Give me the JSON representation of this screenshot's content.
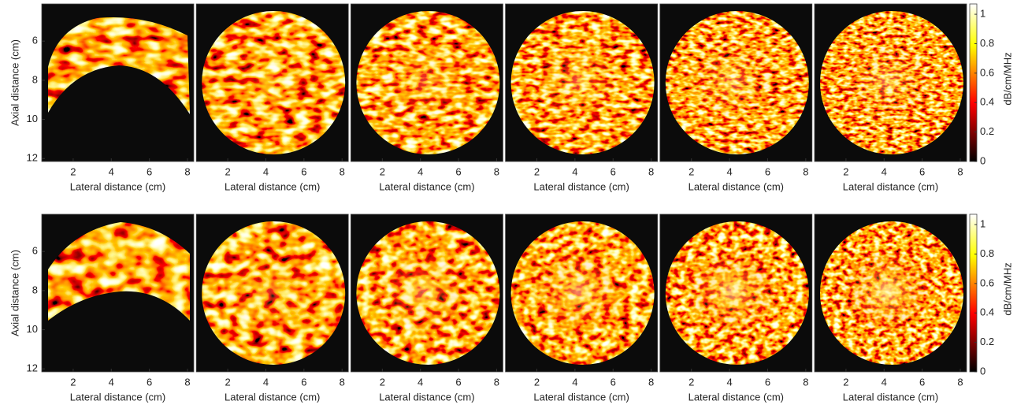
{
  "chart_data": [
    {
      "type": "heatmap",
      "xlabel": "Lateral distance (cm)",
      "xlim": [
        0.35,
        8.33
      ],
      "xticks": [
        2,
        4,
        6,
        8
      ],
      "ylabel": "Axial distance (cm)",
      "ylim": [
        4.1,
        12.15
      ],
      "yreverse": true,
      "yticks": [
        6,
        8,
        10,
        12
      ]
    },
    {
      "type": "heatmap",
      "xlabel": "Lateral distance (cm)",
      "xlim": [
        0.35,
        8.33
      ],
      "xticks": [
        2,
        4,
        6,
        8
      ]
    },
    {
      "type": "heatmap",
      "xlabel": "Lateral distance (cm)",
      "xlim": [
        0.35,
        8.33
      ],
      "xticks": [
        2,
        4,
        6,
        8
      ]
    },
    {
      "type": "heatmap",
      "xlabel": "Lateral distance (cm)",
      "xlim": [
        0.35,
        8.33
      ],
      "xticks": [
        2,
        4,
        6,
        8
      ]
    },
    {
      "type": "heatmap",
      "xlabel": "Lateral distance (cm)",
      "xlim": [
        0.35,
        8.33
      ],
      "xticks": [
        2,
        4,
        6,
        8
      ]
    },
    {
      "type": "heatmap",
      "xlabel": "Lateral distance (cm)",
      "xlim": [
        0.35,
        8.33
      ],
      "xticks": [
        2,
        4,
        6,
        8
      ],
      "colorbar": {
        "label": "dB/cm/MHz",
        "lim": [
          0,
          1.07
        ],
        "ticks": [
          0,
          0.2,
          0.4,
          0.6,
          0.8,
          1
        ]
      }
    },
    {
      "type": "heatmap",
      "xlabel": "Lateral distance (cm)",
      "xlim": [
        0.35,
        8.33
      ],
      "xticks": [
        2,
        4,
        6,
        8
      ],
      "ylabel": "Axial distance (cm)",
      "ylim": [
        4.1,
        12.15
      ],
      "yreverse": true,
      "yticks": [
        6,
        8,
        10,
        12
      ]
    },
    {
      "type": "heatmap",
      "xlabel": "Lateral distance (cm)",
      "xlim": [
        0.35,
        8.33
      ],
      "xticks": [
        2,
        4,
        6,
        8
      ]
    },
    {
      "type": "heatmap",
      "xlabel": "Lateral distance (cm)",
      "xlim": [
        0.35,
        8.33
      ],
      "xticks": [
        2,
        4,
        6,
        8
      ]
    },
    {
      "type": "heatmap",
      "xlabel": "Lateral distance (cm)",
      "xlim": [
        0.35,
        8.33
      ],
      "xticks": [
        2,
        4,
        6,
        8
      ]
    },
    {
      "type": "heatmap",
      "xlabel": "Lateral distance (cm)",
      "xlim": [
        0.35,
        8.33
      ],
      "xticks": [
        2,
        4,
        6,
        8
      ]
    },
    {
      "type": "heatmap",
      "xlabel": "Lateral distance (cm)",
      "xlim": [
        0.35,
        8.33
      ],
      "xticks": [
        2,
        4,
        6,
        8
      ],
      "colorbar": {
        "label": "dB/cm/MHz",
        "lim": [
          0,
          1.07
        ],
        "ticks": [
          0,
          0.2,
          0.4,
          0.6,
          0.8,
          1
        ]
      }
    }
  ]
}
